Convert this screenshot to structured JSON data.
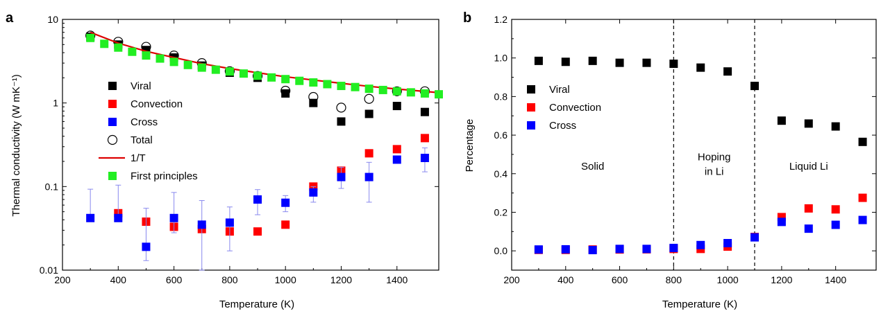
{
  "chart_data": [
    {
      "panel_label": "a",
      "type": "scatter",
      "xlabel": "Temperature (K)",
      "ylabel": "Thermal conductivity (W mK⁻¹)",
      "xlim": [
        200,
        1550
      ],
      "ylim": [
        0.01,
        10
      ],
      "y_scale": "log",
      "x_ticks": [
        200,
        400,
        600,
        800,
        1000,
        1200,
        1400
      ],
      "y_ticks": [
        {
          "value": 0.01,
          "label": "0.01"
        },
        {
          "value": 0.1,
          "label": "0.1"
        },
        {
          "value": 1,
          "label": "1"
        },
        {
          "value": 10,
          "label": "10"
        }
      ],
      "legend_position": "center-left",
      "series": [
        {
          "name": "Viral",
          "marker": "square",
          "color": "#000000",
          "x": [
            300,
            400,
            500,
            600,
            700,
            800,
            900,
            1000,
            1100,
            1200,
            1300,
            1400,
            1500
          ],
          "y": [
            6.2,
            5.0,
            4.3,
            3.5,
            2.8,
            2.3,
            2.0,
            1.3,
            1.0,
            0.6,
            0.74,
            0.92,
            0.78
          ]
        },
        {
          "name": "Convection",
          "marker": "square",
          "color": "#ff0000",
          "x": [
            400,
            500,
            600,
            700,
            800,
            900,
            1000,
            1100,
            1200,
            1300,
            1400,
            1500
          ],
          "y": [
            0.048,
            0.038,
            0.033,
            0.031,
            0.029,
            0.029,
            0.035,
            0.1,
            0.155,
            0.25,
            0.28,
            0.38
          ]
        },
        {
          "name": "Cross",
          "marker": "square",
          "color": "#0000ff",
          "x": [
            300,
            400,
            500,
            600,
            700,
            800,
            900,
            1000,
            1100,
            1200,
            1300,
            1400,
            1500
          ],
          "y": [
            0.042,
            0.042,
            0.019,
            0.042,
            0.035,
            0.037,
            0.07,
            0.064,
            0.085,
            0.13,
            0.13,
            0.21,
            0.22
          ],
          "err_low": [
            0.042,
            0.042,
            0.013,
            0.028,
            0.01,
            0.017,
            0.046,
            0.05,
            0.065,
            0.095,
            0.065,
            0.2,
            0.15
          ],
          "err_high": [
            0.093,
            0.104,
            0.055,
            0.085,
            0.068,
            0.057,
            0.092,
            0.078,
            0.1,
            0.17,
            0.195,
            0.22,
            0.29
          ]
        },
        {
          "name": "Total",
          "marker": "open-circle",
          "color": "#000000",
          "x": [
            300,
            400,
            500,
            600,
            700,
            800,
            900,
            1000,
            1100,
            1200,
            1300,
            1400,
            1500
          ],
          "y": [
            6.4,
            5.4,
            4.7,
            3.7,
            3.0,
            2.4,
            2.1,
            1.4,
            1.18,
            0.88,
            1.12,
            1.38,
            1.38
          ]
        },
        {
          "name": "1/T",
          "marker": "line",
          "color": "#dd0000",
          "x": [
            300,
            400,
            500,
            600,
            700,
            800,
            900,
            1000,
            1100,
            1200,
            1300,
            1400,
            1550
          ],
          "y": [
            7.0,
            5.2,
            4.15,
            3.5,
            2.95,
            2.58,
            2.3,
            2.06,
            1.88,
            1.72,
            1.58,
            1.47,
            1.33
          ]
        },
        {
          "name": "First principles",
          "marker": "square",
          "color": "#22ee22",
          "x": [
            300,
            350,
            400,
            450,
            500,
            550,
            600,
            650,
            700,
            750,
            800,
            850,
            900,
            950,
            1000,
            1050,
            1100,
            1150,
            1200,
            1250,
            1300,
            1350,
            1400,
            1450,
            1500,
            1550
          ],
          "y": [
            6.0,
            5.1,
            4.6,
            4.1,
            3.7,
            3.4,
            3.1,
            2.85,
            2.65,
            2.5,
            2.38,
            2.25,
            2.12,
            2.02,
            1.93,
            1.84,
            1.76,
            1.68,
            1.6,
            1.55,
            1.48,
            1.43,
            1.38,
            1.34,
            1.3,
            1.27
          ]
        }
      ]
    },
    {
      "panel_label": "b",
      "type": "scatter",
      "xlabel": "Temperature (K)",
      "ylabel": "Percentage",
      "xlim": [
        200,
        1550
      ],
      "ylim": [
        -0.1,
        1.2
      ],
      "x_ticks": [
        200,
        400,
        600,
        800,
        1000,
        1200,
        1400
      ],
      "y_ticks": [
        {
          "value": 0.0,
          "label": "0.0"
        },
        {
          "value": 0.2,
          "label": "0.2"
        },
        {
          "value": 0.4,
          "label": "0.4"
        },
        {
          "value": 0.6,
          "label": "0.6"
        },
        {
          "value": 0.8,
          "label": "0.8"
        },
        {
          "value": 1.0,
          "label": "1.0"
        },
        {
          "value": 1.2,
          "label": "1.2"
        }
      ],
      "vlines": [
        800,
        1100
      ],
      "regions": [
        {
          "lines": [
            "Solid"
          ],
          "x": 500,
          "y": 0.42
        },
        {
          "lines": [
            "Hoping",
            "in Li"
          ],
          "x": 950,
          "y": 0.47
        },
        {
          "lines": [
            "Liquid Li"
          ],
          "x": 1300,
          "y": 0.42
        }
      ],
      "legend_position": "center-left",
      "series": [
        {
          "name": "Viral",
          "marker": "square",
          "color": "#000000",
          "x": [
            300,
            400,
            500,
            600,
            700,
            800,
            900,
            1000,
            1100,
            1200,
            1300,
            1400,
            1500
          ],
          "y": [
            0.985,
            0.98,
            0.985,
            0.975,
            0.975,
            0.97,
            0.95,
            0.93,
            0.855,
            0.675,
            0.66,
            0.645,
            0.565
          ]
        },
        {
          "name": "Convection",
          "marker": "square",
          "color": "#ff0000",
          "x": [
            300,
            400,
            500,
            600,
            700,
            800,
            900,
            1000,
            1100,
            1200,
            1300,
            1400,
            1500
          ],
          "y": [
            0.005,
            0.005,
            0.007,
            0.007,
            0.008,
            0.01,
            0.01,
            0.022,
            0.072,
            0.175,
            0.22,
            0.215,
            0.275
          ]
        },
        {
          "name": "Cross",
          "marker": "square",
          "color": "#0000ff",
          "x": [
            300,
            400,
            500,
            600,
            700,
            800,
            900,
            1000,
            1100,
            1200,
            1300,
            1400,
            1500
          ],
          "y": [
            0.007,
            0.008,
            0.004,
            0.01,
            0.01,
            0.015,
            0.03,
            0.04,
            0.07,
            0.15,
            0.115,
            0.135,
            0.16
          ]
        }
      ]
    }
  ]
}
